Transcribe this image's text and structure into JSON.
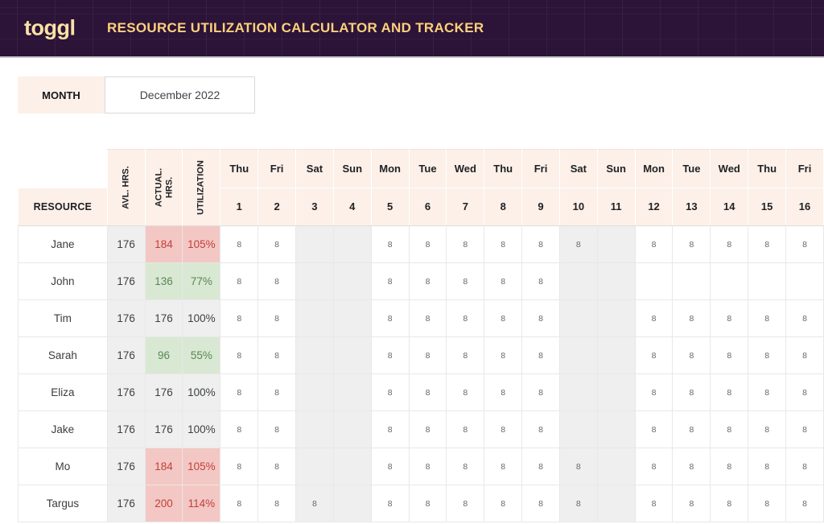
{
  "header": {
    "logo": "toggl",
    "title": "RESOURCE UTILIZATION CALCULATOR AND TRACKER"
  },
  "month": {
    "label": "MONTH",
    "value": "December 2022"
  },
  "table": {
    "resource_header": "RESOURCE",
    "stat_columns": [
      "AVL. HRS.",
      "ACTUAL. HRS.",
      "UTILIZATION"
    ],
    "days": [
      {
        "name": "Thu",
        "num": "1",
        "weekend": false
      },
      {
        "name": "Fri",
        "num": "2",
        "weekend": false
      },
      {
        "name": "Sat",
        "num": "3",
        "weekend": true
      },
      {
        "name": "Sun",
        "num": "4",
        "weekend": true
      },
      {
        "name": "Mon",
        "num": "5",
        "weekend": false
      },
      {
        "name": "Tue",
        "num": "6",
        "weekend": false
      },
      {
        "name": "Wed",
        "num": "7",
        "weekend": false
      },
      {
        "name": "Thu",
        "num": "8",
        "weekend": false
      },
      {
        "name": "Fri",
        "num": "9",
        "weekend": false
      },
      {
        "name": "Sat",
        "num": "10",
        "weekend": true
      },
      {
        "name": "Sun",
        "num": "11",
        "weekend": true
      },
      {
        "name": "Mon",
        "num": "12",
        "weekend": false
      },
      {
        "name": "Tue",
        "num": "13",
        "weekend": false
      },
      {
        "name": "Wed",
        "num": "14",
        "weekend": false
      },
      {
        "name": "Thu",
        "num": "15",
        "weekend": false
      },
      {
        "name": "Fri",
        "num": "16",
        "weekend": false
      }
    ],
    "rows": [
      {
        "name": "Jane",
        "avl": "176",
        "actual": "184",
        "utilization": "105%",
        "status": "over",
        "hours": [
          "8",
          "8",
          "",
          "",
          "8",
          "8",
          "8",
          "8",
          "8",
          "8",
          "",
          "8",
          "8",
          "8",
          "8",
          "8"
        ]
      },
      {
        "name": "John",
        "avl": "176",
        "actual": "136",
        "utilization": "77%",
        "status": "under",
        "hours": [
          "8",
          "8",
          "",
          "",
          "8",
          "8",
          "8",
          "8",
          "8",
          "",
          "",
          "",
          "",
          "",
          "",
          ""
        ]
      },
      {
        "name": "Tim",
        "avl": "176",
        "actual": "176",
        "utilization": "100%",
        "status": "full",
        "hours": [
          "8",
          "8",
          "",
          "",
          "8",
          "8",
          "8",
          "8",
          "8",
          "",
          "",
          "8",
          "8",
          "8",
          "8",
          "8"
        ]
      },
      {
        "name": "Sarah",
        "avl": "176",
        "actual": "96",
        "utilization": "55%",
        "status": "under",
        "hours": [
          "8",
          "8",
          "",
          "",
          "8",
          "8",
          "8",
          "8",
          "8",
          "",
          "",
          "8",
          "8",
          "8",
          "8",
          "8"
        ]
      },
      {
        "name": "Eliza",
        "avl": "176",
        "actual": "176",
        "utilization": "100%",
        "status": "full",
        "hours": [
          "8",
          "8",
          "",
          "",
          "8",
          "8",
          "8",
          "8",
          "8",
          "",
          "",
          "8",
          "8",
          "8",
          "8",
          "8"
        ]
      },
      {
        "name": "Jake",
        "avl": "176",
        "actual": "176",
        "utilization": "100%",
        "status": "full",
        "hours": [
          "8",
          "8",
          "",
          "",
          "8",
          "8",
          "8",
          "8",
          "8",
          "",
          "",
          "8",
          "8",
          "8",
          "8",
          "8"
        ]
      },
      {
        "name": "Mo",
        "avl": "176",
        "actual": "184",
        "utilization": "105%",
        "status": "over",
        "hours": [
          "8",
          "8",
          "",
          "",
          "8",
          "8",
          "8",
          "8",
          "8",
          "8",
          "",
          "8",
          "8",
          "8",
          "8",
          "8"
        ]
      },
      {
        "name": "Targus",
        "avl": "176",
        "actual": "200",
        "utilization": "114%",
        "status": "over",
        "hours": [
          "8",
          "8",
          "8",
          "",
          "8",
          "8",
          "8",
          "8",
          "8",
          "8",
          "",
          "8",
          "8",
          "8",
          "8",
          "8"
        ]
      }
    ]
  },
  "colors": {
    "app_header_bg": "#2c1338",
    "brand_yellow": "#ffde91",
    "header_cell_bg": "#fcf0e9",
    "weekend_bg": "#efefef",
    "avl_bg": "#efefef",
    "over_bg": "#f3c7c3",
    "over_text": "#c2403c",
    "under_bg": "#d9e8d2",
    "under_text": "#578753",
    "full_bg": "#efefef"
  }
}
